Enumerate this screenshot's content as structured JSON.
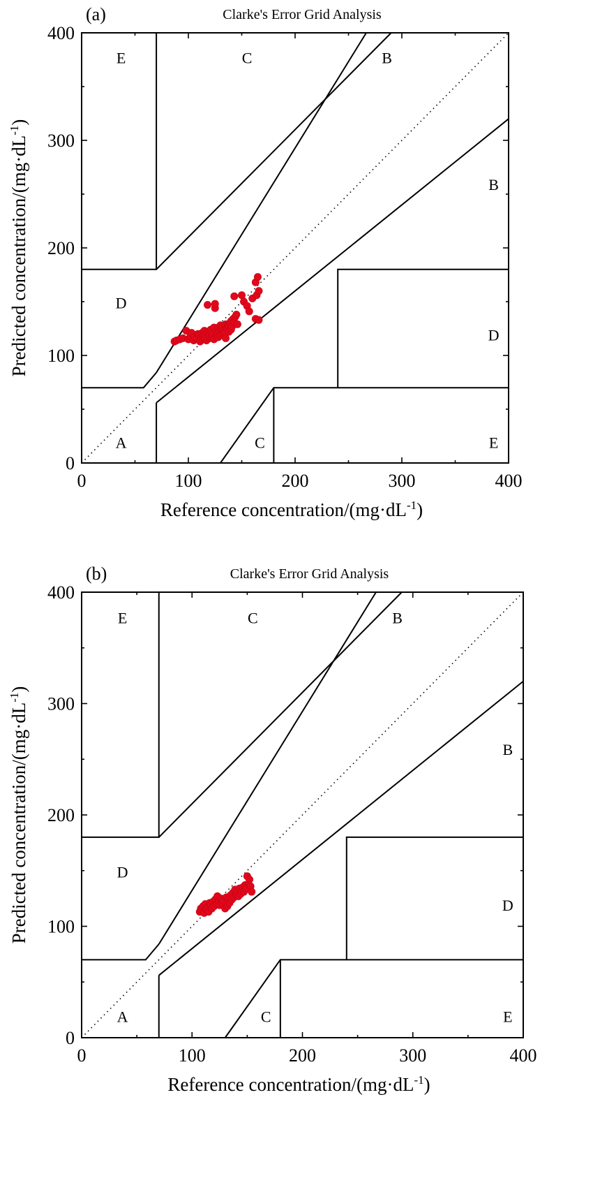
{
  "chart_data": [
    {
      "type": "scatter",
      "panel_label": "(a)",
      "title": "Clarke's Error Grid Analysis",
      "xlabel": "Reference concentration/(mg·dL⁻¹)",
      "ylabel": "Predicted concentration/(mg·dL⁻¹)",
      "xlim": [
        0,
        400
      ],
      "ylim": [
        0,
        400
      ],
      "xticks": [
        "0",
        "100",
        "200",
        "300",
        "400"
      ],
      "yticks": [
        "0",
        "100",
        "200",
        "300",
        "400"
      ],
      "grid": false,
      "point_color": "#e1081c",
      "zone_labels": [
        {
          "text": "E",
          "x": 37,
          "y": 377
        },
        {
          "text": "C",
          "x": 155,
          "y": 377
        },
        {
          "text": "B",
          "x": 286,
          "y": 377
        },
        {
          "text": "B",
          "x": 386,
          "y": 259
        },
        {
          "text": "D",
          "x": 37,
          "y": 149
        },
        {
          "text": "D",
          "x": 386,
          "y": 119
        },
        {
          "text": "A",
          "x": 37,
          "y": 19
        },
        {
          "text": "C",
          "x": 167,
          "y": 19
        },
        {
          "text": "E",
          "x": 386,
          "y": 19
        }
      ],
      "points": [
        [
          87,
          113
        ],
        [
          89,
          114
        ],
        [
          92,
          115
        ],
        [
          95,
          116
        ],
        [
          98,
          123
        ],
        [
          100,
          115
        ],
        [
          102,
          118
        ],
        [
          103,
          121
        ],
        [
          105,
          114
        ],
        [
          106,
          117
        ],
        [
          108,
          116
        ],
        [
          109,
          120
        ],
        [
          110,
          119
        ],
        [
          111,
          113
        ],
        [
          112,
          117
        ],
        [
          113,
          115
        ],
        [
          113,
          121
        ],
        [
          114,
          118
        ],
        [
          115,
          116
        ],
        [
          115,
          123
        ],
        [
          116,
          119
        ],
        [
          117,
          114
        ],
        [
          117,
          117
        ],
        [
          118,
          122
        ],
        [
          118,
          147
        ],
        [
          119,
          120
        ],
        [
          120,
          116
        ],
        [
          120,
          118
        ],
        [
          121,
          124
        ],
        [
          122,
          117
        ],
        [
          122,
          121
        ],
        [
          123,
          119
        ],
        [
          124,
          126
        ],
        [
          124,
          115
        ],
        [
          125,
          144
        ],
        [
          125,
          148
        ],
        [
          126,
          123
        ],
        [
          126,
          118
        ],
        [
          127,
          120
        ],
        [
          128,
          126
        ],
        [
          128,
          117
        ],
        [
          129,
          122
        ],
        [
          130,
          119
        ],
        [
          130,
          128
        ],
        [
          131,
          124
        ],
        [
          132,
          120
        ],
        [
          132,
          126
        ],
        [
          133,
          123
        ],
        [
          134,
          118
        ],
        [
          134,
          121
        ],
        [
          135,
          129
        ],
        [
          135,
          116
        ],
        [
          136,
          125
        ],
        [
          137,
          128
        ],
        [
          138,
          122
        ],
        [
          138,
          127
        ],
        [
          139,
          130
        ],
        [
          140,
          124
        ],
        [
          140,
          132
        ],
        [
          141,
          127
        ],
        [
          142,
          134
        ],
        [
          143,
          155
        ],
        [
          143,
          131
        ],
        [
          144,
          136
        ],
        [
          145,
          138
        ],
        [
          146,
          129
        ],
        [
          150,
          156
        ],
        [
          152,
          150
        ],
        [
          155,
          146
        ],
        [
          157,
          141
        ],
        [
          160,
          153
        ],
        [
          163,
          168
        ],
        [
          163,
          134
        ],
        [
          164,
          156
        ],
        [
          165,
          173
        ],
        [
          166,
          133
        ],
        [
          166,
          160
        ]
      ]
    },
    {
      "type": "scatter",
      "panel_label": "(b)",
      "title": "Clarke's Error Grid Analysis",
      "xlabel": "Reference concentration/(mg·dL⁻¹)",
      "ylabel": "Predicted concentration/(mg·dL⁻¹)",
      "xlim": [
        0,
        400
      ],
      "ylim": [
        0,
        400
      ],
      "xticks": [
        "0",
        "100",
        "200",
        "300",
        "400"
      ],
      "yticks": [
        "0",
        "100",
        "200",
        "300",
        "400"
      ],
      "grid": false,
      "point_color": "#e1081c",
      "zone_labels": [
        {
          "text": "E",
          "x": 37,
          "y": 377
        },
        {
          "text": "C",
          "x": 155,
          "y": 377
        },
        {
          "text": "B",
          "x": 286,
          "y": 377
        },
        {
          "text": "B",
          "x": 386,
          "y": 259
        },
        {
          "text": "D",
          "x": 37,
          "y": 149
        },
        {
          "text": "D",
          "x": 386,
          "y": 119
        },
        {
          "text": "A",
          "x": 37,
          "y": 19
        },
        {
          "text": "C",
          "x": 167,
          "y": 19
        },
        {
          "text": "E",
          "x": 386,
          "y": 19
        }
      ],
      "points": [
        [
          107,
          113
        ],
        [
          108,
          116
        ],
        [
          109,
          114
        ],
        [
          110,
          118
        ],
        [
          111,
          112
        ],
        [
          112,
          120
        ],
        [
          113,
          115
        ],
        [
          114,
          117
        ],
        [
          115,
          113
        ],
        [
          116,
          121
        ],
        [
          117,
          119
        ],
        [
          118,
          116
        ],
        [
          119,
          122
        ],
        [
          120,
          118
        ],
        [
          121,
          124
        ],
        [
          122,
          120
        ],
        [
          123,
          127
        ],
        [
          124,
          122
        ],
        [
          125,
          119
        ],
        [
          126,
          125
        ],
        [
          127,
          121
        ],
        [
          128,
          123
        ],
        [
          130,
          116
        ],
        [
          131,
          126
        ],
        [
          132,
          118
        ],
        [
          133,
          125
        ],
        [
          134,
          121
        ],
        [
          135,
          128
        ],
        [
          136,
          124
        ],
        [
          137,
          130
        ],
        [
          138,
          126
        ],
        [
          139,
          133
        ],
        [
          140,
          128
        ],
        [
          141,
          131
        ],
        [
          142,
          127
        ],
        [
          143,
          134
        ],
        [
          144,
          129
        ],
        [
          145,
          132
        ],
        [
          146,
          135
        ],
        [
          147,
          131
        ],
        [
          148,
          137
        ],
        [
          149,
          134
        ],
        [
          150,
          145
        ],
        [
          151,
          138
        ],
        [
          152,
          142
        ],
        [
          153,
          136
        ],
        [
          154,
          131
        ]
      ]
    }
  ]
}
